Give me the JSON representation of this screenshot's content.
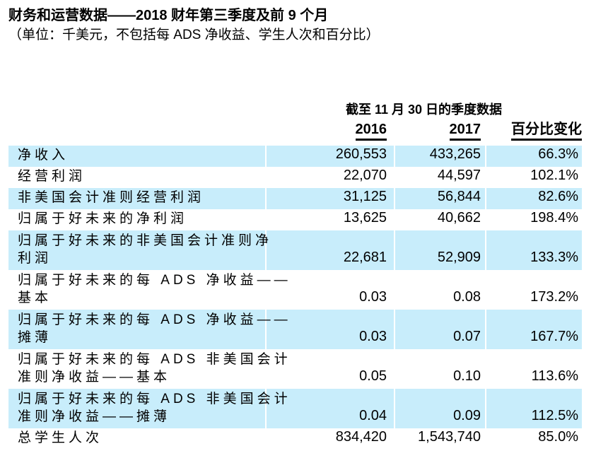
{
  "title": "财务和运营数据——2018 财年第三季度及前 9 个月",
  "subtitle": "（单位：千美元，不包括每 ADS 净收益、学生人次和百分比）",
  "colors": {
    "zebra_row": "#c8edfb",
    "text": "#000000"
  },
  "table": {
    "group_header": "截至 11 月 30 日的季度数据",
    "columns": [
      "2016",
      "2017",
      "百分比变化"
    ],
    "rows": [
      {
        "label_lines": [
          "净收入"
        ],
        "v2016": "260,553",
        "v2017": "433,265",
        "change": "66.3%"
      },
      {
        "label_lines": [
          "经营利润"
        ],
        "v2016": "22,070",
        "v2017": "44,597",
        "change": "102.1%"
      },
      {
        "label_lines": [
          "非美国会计准则经营利润"
        ],
        "v2016": "31,125",
        "v2017": "56,844",
        "change": "82.6%"
      },
      {
        "label_lines": [
          "归属于好未来的净利润"
        ],
        "v2016": "13,625",
        "v2017": "40,662",
        "change": "198.4%"
      },
      {
        "label_lines": [
          "归属于好未来的非美国会计准则净",
          "利润"
        ],
        "v2016": "22,681",
        "v2017": "52,909",
        "change": "133.3%"
      },
      {
        "label_lines": [
          "归属于好未来的每 ADS 净收益——",
          "基本"
        ],
        "v2016": "0.03",
        "v2017": "0.08",
        "change": "173.2%"
      },
      {
        "label_lines": [
          "归属于好未来的每 ADS 净收益——",
          "摊薄"
        ],
        "v2016": "0.03",
        "v2017": "0.07",
        "change": "167.7%"
      },
      {
        "label_lines": [
          "归属于好未来的每 ADS 非美国会计",
          "准则净收益——基本"
        ],
        "v2016": "0.05",
        "v2017": "0.10",
        "change": "113.6%"
      },
      {
        "label_lines": [
          "归属于好未来的每 ADS 非美国会计",
          "准则净收益——摊薄"
        ],
        "v2016": "0.04",
        "v2017": "0.09",
        "change": "112.5%"
      },
      {
        "label_lines": [
          "总学生人次"
        ],
        "v2016": "834,420",
        "v2017": "1,543,740",
        "change": "85.0%"
      }
    ]
  }
}
